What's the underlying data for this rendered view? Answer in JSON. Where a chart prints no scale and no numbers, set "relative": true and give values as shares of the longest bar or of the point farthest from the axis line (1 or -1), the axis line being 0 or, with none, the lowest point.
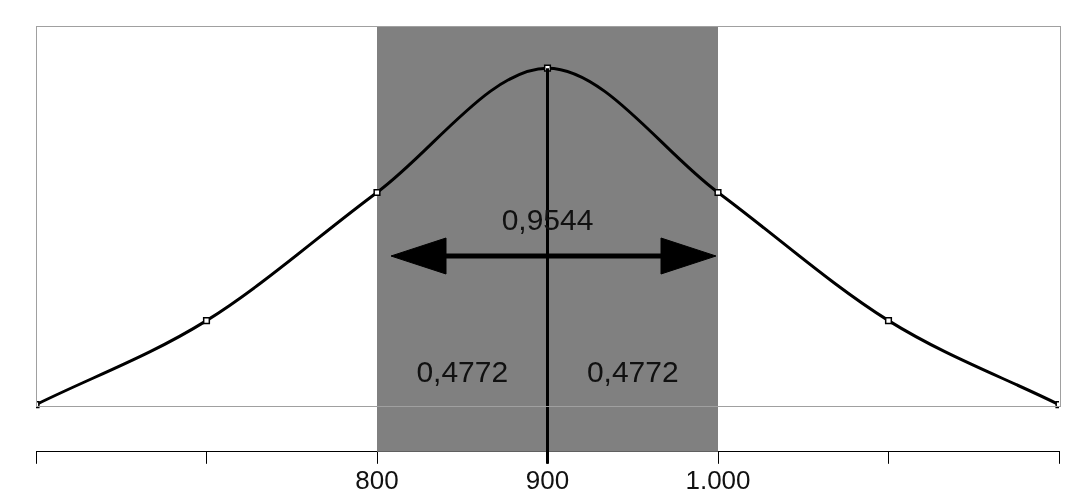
{
  "chart_data": {
    "type": "line",
    "relative": true,
    "marker": "square",
    "line_style": "solid",
    "grid": false,
    "legend": false,
    "tick_labels": "x",
    "xlim": [
      600,
      1200
    ],
    "xticks": [
      {
        "value": 600,
        "label": null
      },
      {
        "value": 700,
        "label": null
      },
      800,
      900,
      {
        "value": 1000,
        "label": "1.000"
      },
      {
        "value": 1100,
        "label": null
      },
      {
        "value": 1200,
        "label": null
      }
    ],
    "series": [
      {
        "color": "#000000",
        "x": [
          600,
          700,
          800,
          900,
          1000,
          1100,
          1200
        ],
        "values": [
          0.123,
          0.342,
          0.676,
          1,
          0.676,
          0.342,
          0.123
        ]
      }
    ],
    "bands": [
      {
        "axis": "x",
        "from": 800,
        "to": 1000,
        "color": "#808080"
      }
    ],
    "ref_lines": [
      {
        "axis": "x",
        "value": 900,
        "color": "#000000",
        "line_style": "solid"
      }
    ],
    "annotations": [
      {
        "text": "0,9544",
        "x": 900,
        "y": 0.6
      },
      "0,4772",
      "0,4772"
    ]
  }
}
